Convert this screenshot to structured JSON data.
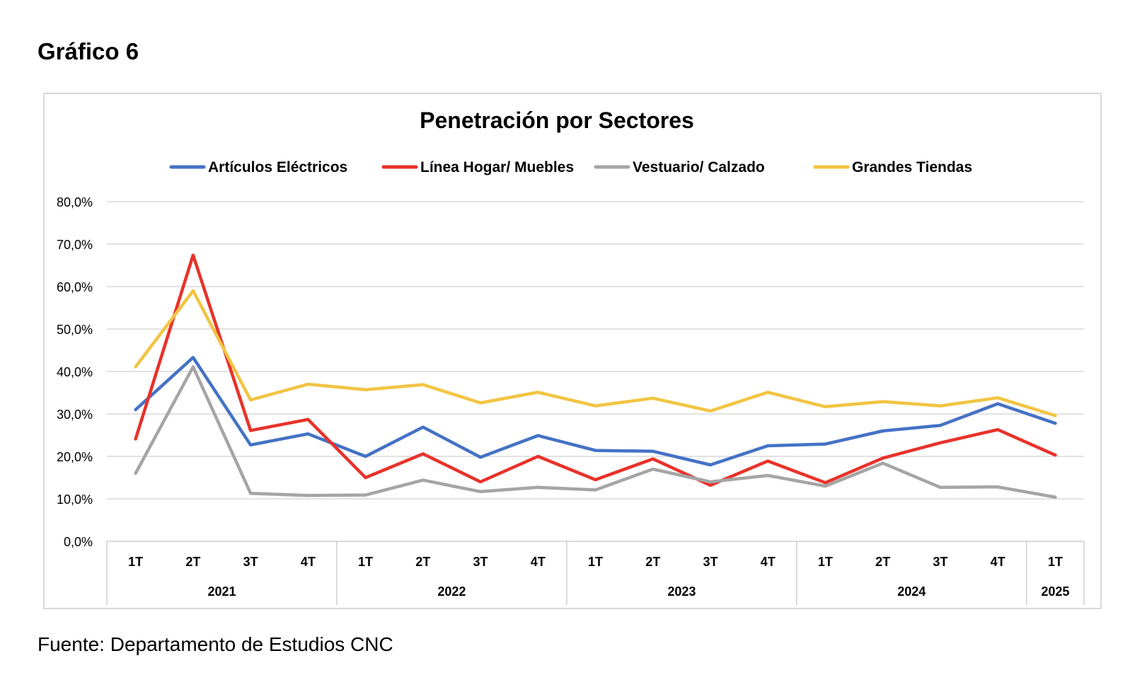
{
  "heading": "Gráfico 6",
  "source": "Fuente: Departamento de Estudios CNC",
  "chart_data": {
    "type": "line",
    "title": "Penetración por Sectores",
    "xlabel": "",
    "ylabel": "",
    "ylim": [
      0,
      80
    ],
    "y_ticks": [
      "0,0%",
      "10,0%",
      "20,0%",
      "30,0%",
      "40,0%",
      "50,0%",
      "60,0%",
      "70,0%",
      "80,0%"
    ],
    "categories": [
      "1T",
      "2T",
      "3T",
      "4T",
      "1T",
      "2T",
      "3T",
      "4T",
      "1T",
      "2T",
      "3T",
      "4T",
      "1T",
      "2T",
      "3T",
      "4T",
      "1T"
    ],
    "year_groups": [
      {
        "label": "2021",
        "count": 4
      },
      {
        "label": "2022",
        "count": 4
      },
      {
        "label": "2023",
        "count": 4
      },
      {
        "label": "2024",
        "count": 4
      },
      {
        "label": "2025",
        "count": 1
      }
    ],
    "legend_position": "top",
    "grid": true,
    "series": [
      {
        "name": "Artículos Eléctricos",
        "color": "#4472C4",
        "values": [
          31.0,
          43.3,
          22.7,
          25.3,
          20.0,
          26.9,
          19.8,
          24.9,
          21.4,
          21.2,
          18.0,
          22.5,
          22.9,
          26.0,
          27.3,
          32.4,
          27.8
        ]
      },
      {
        "name": "Línea Hogar/ Muebles",
        "color": "#E8322A",
        "values": [
          24.1,
          67.4,
          26.1,
          28.7,
          15.0,
          20.6,
          14.0,
          20.0,
          14.5,
          19.4,
          13.2,
          18.9,
          13.8,
          19.6,
          23.2,
          26.3,
          20.3
        ]
      },
      {
        "name": "Vestuario/ Calzado",
        "color": "#A5A5A5",
        "values": [
          16.0,
          41.1,
          11.3,
          10.8,
          10.9,
          14.4,
          11.7,
          12.7,
          12.1,
          17.0,
          14.0,
          15.5,
          13.0,
          18.4,
          12.7,
          12.8,
          10.4
        ]
      },
      {
        "name": "Grandes Tiendas",
        "color": "#F2C443",
        "values": [
          41.1,
          59.0,
          33.3,
          37.0,
          35.7,
          36.9,
          32.6,
          35.1,
          31.9,
          33.7,
          30.7,
          35.1,
          31.7,
          32.9,
          31.9,
          33.8,
          29.6
        ]
      }
    ]
  }
}
